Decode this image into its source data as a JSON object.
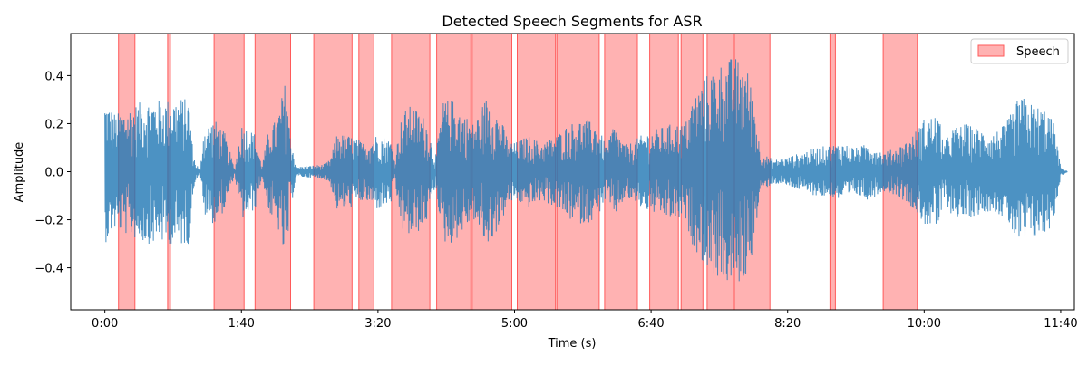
{
  "chart_data": {
    "type": "area",
    "title": "Detected Speech Segments for ASR",
    "xlabel": "Time (s)",
    "ylabel": "Amplitude",
    "xlim": [
      -25,
      710
    ],
    "ylim": [
      -0.575,
      0.575
    ],
    "x_ticks": [
      {
        "value": 0,
        "label": "0:00"
      },
      {
        "value": 100,
        "label": "1:40"
      },
      {
        "value": 200,
        "label": "3:20"
      },
      {
        "value": 300,
        "label": "5:00"
      },
      {
        "value": 400,
        "label": "6:40"
      },
      {
        "value": 500,
        "label": "8:20"
      },
      {
        "value": 600,
        "label": "10:00"
      },
      {
        "value": 700,
        "label": "11:40"
      }
    ],
    "y_ticks": [
      {
        "value": -0.4,
        "label": "−0.4"
      },
      {
        "value": -0.2,
        "label": "−0.2"
      },
      {
        "value": 0.0,
        "label": "0.0"
      },
      {
        "value": 0.2,
        "label": "0.2"
      },
      {
        "value": 0.4,
        "label": "0.4"
      }
    ],
    "waveform_color": "#1f77b4",
    "speech_color": "#ff7f7f",
    "speech_edge_color": "#ff5a5a",
    "legend": {
      "label": "Speech",
      "placement": "top-right"
    },
    "grid": false,
    "waveform_envelope": [
      {
        "t": 0,
        "amp": 0.3
      },
      {
        "t": 8,
        "amp": 0.24
      },
      {
        "t": 18,
        "amp": 0.27
      },
      {
        "t": 30,
        "amp": 0.3
      },
      {
        "t": 45,
        "amp": 0.3
      },
      {
        "t": 55,
        "amp": 0.31
      },
      {
        "t": 62,
        "amp": 0.3
      },
      {
        "t": 64,
        "amp": 0.12
      },
      {
        "t": 66,
        "amp": 0.04
      },
      {
        "t": 70,
        "amp": 0.008
      },
      {
        "t": 72,
        "amp": 0.18
      },
      {
        "t": 80,
        "amp": 0.22
      },
      {
        "t": 88,
        "amp": 0.16
      },
      {
        "t": 95,
        "amp": 0.01
      },
      {
        "t": 100,
        "amp": 0.2
      },
      {
        "t": 110,
        "amp": 0.16
      },
      {
        "t": 115,
        "amp": 0.02
      },
      {
        "t": 120,
        "amp": 0.18
      },
      {
        "t": 126,
        "amp": 0.22
      },
      {
        "t": 133,
        "amp": 0.4
      },
      {
        "t": 135,
        "amp": 0.2
      },
      {
        "t": 140,
        "amp": 0.02
      },
      {
        "t": 160,
        "amp": 0.03
      },
      {
        "t": 165,
        "amp": 0.05
      },
      {
        "t": 170,
        "amp": 0.16
      },
      {
        "t": 180,
        "amp": 0.15
      },
      {
        "t": 190,
        "amp": 0.12
      },
      {
        "t": 200,
        "amp": 0.16
      },
      {
        "t": 210,
        "amp": 0.13
      },
      {
        "t": 212,
        "amp": 0.05
      },
      {
        "t": 218,
        "amp": 0.25
      },
      {
        "t": 225,
        "amp": 0.28
      },
      {
        "t": 235,
        "amp": 0.22
      },
      {
        "t": 242,
        "amp": 0.06
      },
      {
        "t": 248,
        "amp": 0.3
      },
      {
        "t": 255,
        "amp": 0.3
      },
      {
        "t": 262,
        "amp": 0.25
      },
      {
        "t": 270,
        "amp": 0.2
      },
      {
        "t": 280,
        "amp": 0.32
      },
      {
        "t": 290,
        "amp": 0.22
      },
      {
        "t": 295,
        "amp": 0.14
      },
      {
        "t": 300,
        "amp": 0.12
      },
      {
        "t": 310,
        "amp": 0.15
      },
      {
        "t": 320,
        "amp": 0.12
      },
      {
        "t": 330,
        "amp": 0.15
      },
      {
        "t": 340,
        "amp": 0.2
      },
      {
        "t": 350,
        "amp": 0.22
      },
      {
        "t": 360,
        "amp": 0.2
      },
      {
        "t": 368,
        "amp": 0.1
      },
      {
        "t": 372,
        "amp": 0.2
      },
      {
        "t": 380,
        "amp": 0.12
      },
      {
        "t": 385,
        "amp": 0.12
      },
      {
        "t": 395,
        "amp": 0.16
      },
      {
        "t": 405,
        "amp": 0.18
      },
      {
        "t": 415,
        "amp": 0.2
      },
      {
        "t": 425,
        "amp": 0.2
      },
      {
        "t": 430,
        "amp": 0.3
      },
      {
        "t": 440,
        "amp": 0.4
      },
      {
        "t": 450,
        "amp": 0.45
      },
      {
        "t": 460,
        "amp": 0.48
      },
      {
        "t": 468,
        "amp": 0.46
      },
      {
        "t": 472,
        "amp": 0.4
      },
      {
        "t": 476,
        "amp": 0.28
      },
      {
        "t": 480,
        "amp": 0.08
      },
      {
        "t": 490,
        "amp": 0.05
      },
      {
        "t": 500,
        "amp": 0.06
      },
      {
        "t": 510,
        "amp": 0.08
      },
      {
        "t": 520,
        "amp": 0.1
      },
      {
        "t": 530,
        "amp": 0.11
      },
      {
        "t": 540,
        "amp": 0.12
      },
      {
        "t": 550,
        "amp": 0.1
      },
      {
        "t": 560,
        "amp": 0.12
      },
      {
        "t": 570,
        "amp": 0.08
      },
      {
        "t": 580,
        "amp": 0.1
      },
      {
        "t": 590,
        "amp": 0.14
      },
      {
        "t": 600,
        "amp": 0.22
      },
      {
        "t": 610,
        "amp": 0.24
      },
      {
        "t": 615,
        "amp": 0.12
      },
      {
        "t": 620,
        "amp": 0.18
      },
      {
        "t": 630,
        "amp": 0.2
      },
      {
        "t": 640,
        "amp": 0.18
      },
      {
        "t": 650,
        "amp": 0.16
      },
      {
        "t": 660,
        "amp": 0.2
      },
      {
        "t": 670,
        "amp": 0.32
      },
      {
        "t": 680,
        "amp": 0.28
      },
      {
        "t": 690,
        "amp": 0.26
      },
      {
        "t": 695,
        "amp": 0.2
      },
      {
        "t": 700,
        "amp": 0.02
      },
      {
        "t": 705,
        "amp": 0.0
      }
    ],
    "speech_segments": [
      [
        10,
        22
      ],
      [
        46,
        48
      ],
      [
        80,
        102
      ],
      [
        110,
        136
      ],
      [
        153,
        181
      ],
      [
        186,
        197
      ],
      [
        210,
        238
      ],
      [
        243,
        268
      ],
      [
        269,
        298
      ],
      [
        302,
        330
      ],
      [
        331,
        362
      ],
      [
        366,
        390
      ],
      [
        399,
        420
      ],
      [
        422,
        438
      ],
      [
        441,
        461
      ],
      [
        461,
        487
      ],
      [
        531,
        535
      ],
      [
        570,
        595
      ]
    ]
  }
}
